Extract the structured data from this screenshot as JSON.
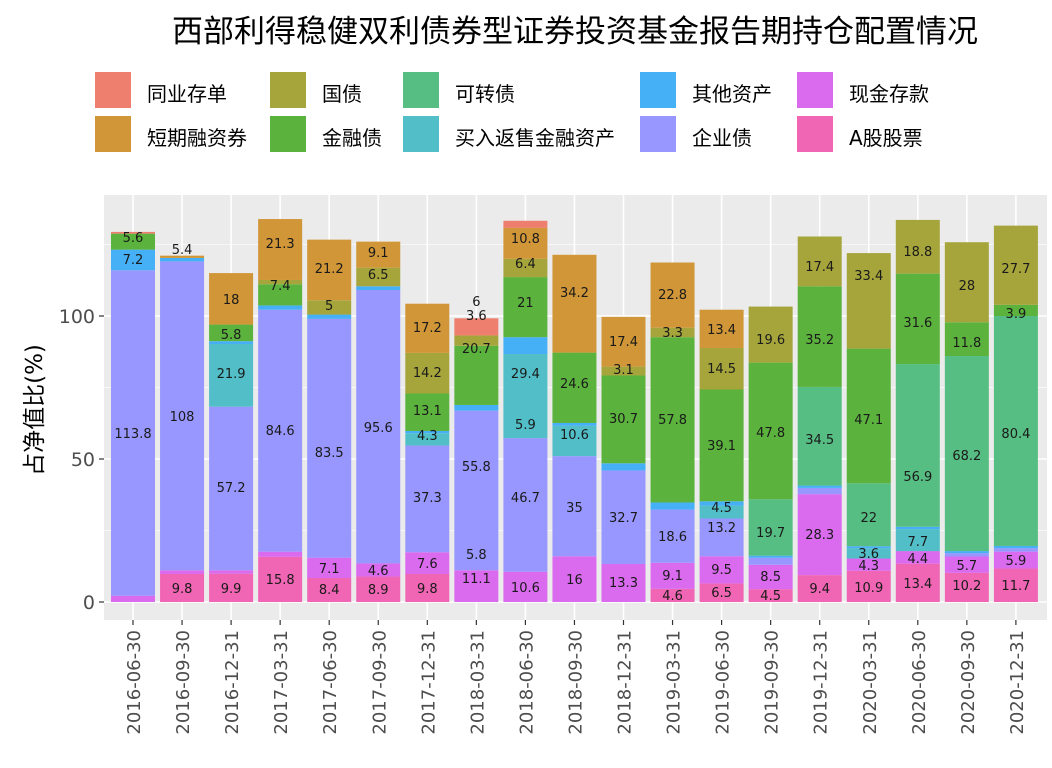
{
  "chart_data": {
    "type": "bar",
    "stacked": true,
    "title": "西部利得稳健双利债券型证券投资基金报告期持仓配置情况",
    "xlabel": "",
    "ylabel": "占净值比(%)",
    "ylim": [
      0,
      140
    ],
    "yticks": [
      0,
      50,
      100
    ],
    "grid": true,
    "legend_position": "top",
    "categories": [
      "2016-06-30",
      "2016-09-30",
      "2016-12-31",
      "2017-03-31",
      "2017-06-30",
      "2017-09-30",
      "2017-12-31",
      "2018-03-31",
      "2018-06-30",
      "2018-09-30",
      "2018-12-31",
      "2019-03-31",
      "2019-06-30",
      "2019-09-30",
      "2019-12-31",
      "2020-03-31",
      "2020-06-30",
      "2020-09-30",
      "2020-12-31"
    ],
    "legend": [
      "同业存单",
      "国债",
      "可转债",
      "其他资产",
      "现金存款",
      "短期融资券",
      "金融债",
      "买入返售金融资产",
      "企业债",
      "A股股票"
    ],
    "series": [
      {
        "name": "A股股票",
        "color": "#F066B4",
        "values": [
          null,
          9.8,
          9.9,
          15.8,
          8.4,
          8.9,
          9.8,
          null,
          null,
          null,
          null,
          4.6,
          6.5,
          4.5,
          9.4,
          10.9,
          13.4,
          10.2,
          11.7
        ]
      },
      {
        "name": "现金存款",
        "color": "#DA6AEE",
        "values": [
          2.2,
          1.3,
          1.2,
          1.8,
          7.1,
          4.6,
          7.6,
          11.1,
          10.6,
          16,
          13.3,
          9.1,
          9.5,
          8.5,
          28.3,
          4.3,
          4.4,
          5.7,
          5.9
        ]
      },
      {
        "name": "企业债",
        "color": "#9797FF",
        "values": [
          113.8,
          108,
          57.2,
          84.6,
          83.5,
          95.6,
          37.3,
          55.8,
          46.7,
          35,
          32.7,
          18.6,
          13.2,
          2.5,
          2.2,
          null,
          null,
          1.2,
          1.2
        ]
      },
      {
        "name": "买入返售金融资产",
        "color": "#52BEC7",
        "values": [
          null,
          null,
          21.9,
          null,
          null,
          null,
          4.3,
          null,
          29.4,
          10.6,
          null,
          null,
          4.5,
          null,
          null,
          3.6,
          7.7,
          null,
          null
        ]
      },
      {
        "name": "其他资产",
        "color": "#45B0F5",
        "values": [
          7.2,
          1.2,
          1.0,
          1.5,
          1.5,
          1.3,
          0.8,
          2.0,
          5.9,
          1.0,
          2.5,
          2.5,
          1.5,
          0.7,
          0.8,
          0.7,
          0.8,
          0.7,
          0.8
        ]
      },
      {
        "name": "可转债",
        "color": "#57BE83",
        "values": [
          null,
          null,
          null,
          null,
          null,
          null,
          null,
          null,
          null,
          null,
          null,
          null,
          null,
          19.7,
          34.5,
          22,
          56.9,
          68.2,
          80.4
        ]
      },
      {
        "name": "金融债",
        "color": "#5BB33D",
        "values": [
          5.6,
          null,
          5.8,
          7.4,
          null,
          null,
          13.1,
          20.7,
          21,
          24.6,
          30.7,
          57.8,
          39.1,
          47.8,
          35.2,
          47.1,
          31.6,
          11.8,
          3.9
        ]
      },
      {
        "name": "国债",
        "color": "#A6A53C",
        "values": [
          null,
          null,
          null,
          1.5,
          5,
          6.5,
          14.2,
          3.6,
          6.4,
          null,
          3.1,
          3.3,
          14.5,
          19.6,
          17.4,
          33.4,
          18.8,
          28,
          27.7
        ]
      },
      {
        "name": "短期融资券",
        "color": "#D09637",
        "values": [
          null,
          0.8,
          18,
          21.3,
          21.2,
          9.1,
          17.2,
          null,
          10.8,
          34.2,
          17.4,
          22.8,
          13.4,
          null,
          null,
          null,
          null,
          null,
          null
        ]
      },
      {
        "name": "同业存单",
        "color": "#EE7F6F",
        "values": [
          0.6,
          null,
          null,
          null,
          null,
          null,
          null,
          6,
          2.5,
          null,
          null,
          null,
          null,
          null,
          null,
          null,
          null,
          null,
          null
        ]
      }
    ],
    "labels": [
      [
        "5.6",
        "7.2",
        "113.8"
      ],
      [
        "5.4",
        "108",
        "9.8"
      ],
      [
        "18",
        "5.8",
        "21.9",
        "57.2",
        "9.9"
      ],
      [
        "21.3",
        "7.4",
        "84.6",
        "15.8"
      ],
      [
        "5",
        "21.2",
        "83.5",
        "7.1",
        "8.4"
      ],
      [
        "9.1",
        "6.5",
        "95.6",
        "4.6",
        "8.9"
      ],
      [
        "17.2",
        "14.2",
        "13.1",
        "4.3",
        "37.3",
        "7.6",
        "9.8"
      ],
      [
        "6",
        "3.6",
        "20.7",
        "55.8",
        "5.8",
        "11.1"
      ],
      [
        "10.8",
        "6.4",
        "21",
        "29.4",
        "5.9",
        "46.7",
        "10.6"
      ],
      [
        "34.2",
        "24.6",
        "10.6",
        "35",
        "16"
      ],
      [
        "17.4",
        "3.1",
        "30.7",
        "32.7",
        "13.3"
      ],
      [
        "22.8",
        "3.3",
        "57.8",
        "18.6",
        "9.1",
        "4.6"
      ],
      [
        "13.4",
        "14.5",
        "39.1",
        "4.5",
        "13.2",
        "9.5",
        "6.5"
      ],
      [
        "19.6",
        "47.8",
        "19.7",
        "8.5",
        "4.5"
      ],
      [
        "17.4",
        "35.2",
        "34.5",
        "28.3",
        "9.4"
      ],
      [
        "33.4",
        "47.1",
        "22",
        "3.6",
        "4.3",
        "10.9"
      ],
      [
        "18.8",
        "31.6",
        "56.9",
        "7.7",
        "4.4",
        "13.4"
      ],
      [
        "28",
        "11.8",
        "68.2",
        "5.7",
        "10.2"
      ],
      [
        "27.7",
        "3.9",
        "80.4",
        "5.9",
        "11.7"
      ]
    ]
  }
}
